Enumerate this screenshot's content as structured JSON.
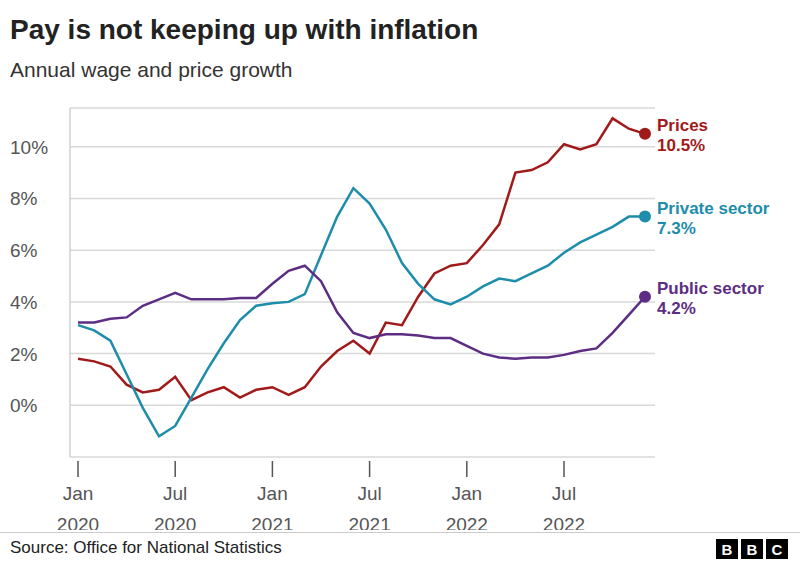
{
  "chart_data": {
    "type": "line",
    "title": "Pay is not keeping up with inflation",
    "subtitle": "Annual wage and price growth",
    "source": "Source: Office for National Statistics",
    "logo": "BBC",
    "categories": [
      "Jan 2020",
      null,
      null,
      null,
      null,
      null,
      "Jul 2020",
      null,
      null,
      null,
      null,
      null,
      "Jan 2021",
      null,
      null,
      null,
      null,
      null,
      "Jul 2021",
      null,
      null,
      null,
      null,
      null,
      "Jan 2022",
      null,
      null,
      null,
      null,
      null,
      "Jul 2022",
      null,
      null,
      null,
      null,
      null
    ],
    "series": [
      {
        "name": "Prices",
        "color": "#a11a1a",
        "values": [
          1.8,
          1.7,
          1.5,
          0.8,
          0.5,
          0.6,
          1.1,
          0.2,
          0.5,
          0.7,
          0.3,
          0.6,
          0.7,
          0.4,
          0.7,
          1.5,
          2.1,
          2.5,
          2.0,
          3.2,
          3.1,
          4.2,
          5.1,
          5.4,
          5.5,
          6.2,
          7.0,
          9.0,
          9.1,
          9.4,
          10.1,
          9.9,
          10.1,
          11.1,
          10.7,
          10.5
        ],
        "value_labels": [
          null,
          null,
          null,
          null,
          null,
          null,
          null,
          null,
          null,
          null,
          null,
          null,
          null,
          null,
          null,
          null,
          null,
          null,
          null,
          null,
          null,
          null,
          null,
          null,
          null,
          null,
          null,
          null,
          null,
          null,
          null,
          null,
          null,
          null,
          null,
          "10.5%"
        ]
      },
      {
        "name": "Private sector",
        "color": "#1d8dab",
        "values": [
          3.1,
          2.9,
          2.5,
          1.2,
          -0.1,
          -1.2,
          -0.8,
          0.3,
          1.4,
          2.4,
          3.3,
          3.85,
          3.95,
          4.0,
          4.3,
          5.8,
          7.3,
          8.4,
          7.8,
          6.8,
          5.5,
          4.7,
          4.1,
          3.9,
          4.2,
          4.6,
          4.9,
          4.8,
          5.1,
          5.4,
          5.9,
          6.3,
          6.6,
          6.9,
          7.3,
          7.3
        ],
        "value_labels": [
          null,
          null,
          null,
          null,
          null,
          null,
          null,
          null,
          null,
          null,
          null,
          null,
          null,
          null,
          null,
          null,
          null,
          null,
          null,
          null,
          null,
          null,
          null,
          null,
          null,
          null,
          null,
          null,
          null,
          null,
          null,
          null,
          null,
          null,
          null,
          "7.3%"
        ]
      },
      {
        "name": "Public sector",
        "color": "#5c2d83",
        "values": [
          3.2,
          3.2,
          3.35,
          3.4,
          3.85,
          4.1,
          4.35,
          4.1,
          4.1,
          4.1,
          4.15,
          4.15,
          4.7,
          5.2,
          5.4,
          4.8,
          3.6,
          2.8,
          2.6,
          2.75,
          2.75,
          2.7,
          2.6,
          2.6,
          2.3,
          2.0,
          1.85,
          1.8,
          1.85,
          1.85,
          1.95,
          2.1,
          2.2,
          2.8,
          3.5,
          4.2
        ],
        "value_labels": [
          null,
          null,
          null,
          null,
          null,
          null,
          null,
          null,
          null,
          null,
          null,
          null,
          null,
          null,
          null,
          null,
          null,
          null,
          null,
          null,
          null,
          null,
          null,
          null,
          null,
          null,
          null,
          null,
          null,
          null,
          null,
          null,
          null,
          null,
          null,
          "4.2%"
        ]
      }
    ],
    "ylim": [
      -2,
      11.5
    ],
    "yticks": [
      {
        "value": 0,
        "label": "0%"
      },
      {
        "value": 2,
        "label": "2%"
      },
      {
        "value": 4,
        "label": "4%"
      },
      {
        "value": 6,
        "label": "6%"
      },
      {
        "value": 8,
        "label": "8%"
      },
      {
        "value": 10,
        "label": "10%"
      }
    ],
    "grid": true
  }
}
